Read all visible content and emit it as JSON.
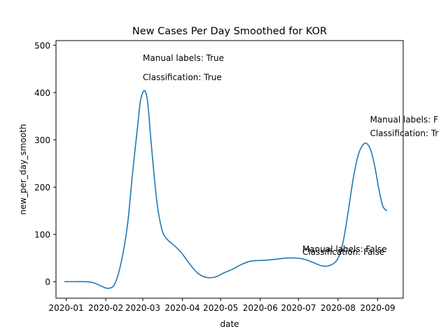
{
  "chart_data": {
    "type": "line",
    "title": "New Cases Per Day Smoothed for KOR",
    "xlabel": "date",
    "ylabel": "new_per_day_smooth",
    "xlim": [
      "2019-12-24",
      "2020-09-21"
    ],
    "ylim": [
      -35,
      510
    ],
    "x_ticks": [
      {
        "date": "2020-01-01",
        "label": "2020-01"
      },
      {
        "date": "2020-02-01",
        "label": "2020-02"
      },
      {
        "date": "2020-03-01",
        "label": "2020-03"
      },
      {
        "date": "2020-04-01",
        "label": "2020-04"
      },
      {
        "date": "2020-05-01",
        "label": "2020-05"
      },
      {
        "date": "2020-06-01",
        "label": "2020-06"
      },
      {
        "date": "2020-07-01",
        "label": "2020-07"
      },
      {
        "date": "2020-08-01",
        "label": "2020-08"
      },
      {
        "date": "2020-09-01",
        "label": "2020-09"
      }
    ],
    "y_ticks": [
      0,
      100,
      200,
      300,
      400,
      500
    ],
    "line_color": "#1f77b4",
    "series": [
      {
        "x": [
          "2019-12-31",
          "2020-01-08",
          "2020-01-15",
          "2020-01-22",
          "2020-01-29",
          "2020-02-03",
          "2020-02-08",
          "2020-02-13",
          "2020-02-18",
          "2020-02-22",
          "2020-02-26",
          "2020-02-28",
          "2020-03-01",
          "2020-03-03",
          "2020-03-05",
          "2020-03-08",
          "2020-03-12",
          "2020-03-16",
          "2020-03-20",
          "2020-03-25",
          "2020-03-31",
          "2020-04-06",
          "2020-04-13",
          "2020-04-20",
          "2020-04-27",
          "2020-05-03",
          "2020-05-10",
          "2020-05-17",
          "2020-05-24",
          "2020-06-01",
          "2020-06-08",
          "2020-06-15",
          "2020-06-22",
          "2020-06-29",
          "2020-07-06",
          "2020-07-13",
          "2020-07-20",
          "2020-07-27",
          "2020-08-01",
          "2020-08-05",
          "2020-08-09",
          "2020-08-13",
          "2020-08-17",
          "2020-08-21",
          "2020-08-24",
          "2020-08-27",
          "2020-08-30",
          "2020-09-02",
          "2020-09-05",
          "2020-09-08"
        ],
        "y": [
          0,
          0,
          0,
          -2,
          -10,
          -14,
          -5,
          40,
          120,
          230,
          330,
          380,
          400,
          402,
          375,
          280,
          170,
          110,
          90,
          78,
          62,
          40,
          18,
          9,
          10,
          18,
          26,
          36,
          43,
          45,
          46,
          48,
          50,
          50,
          47,
          40,
          33,
          36,
          50,
          85,
          150,
          220,
          270,
          291,
          291,
          275,
          240,
          195,
          160,
          150
        ]
      }
    ],
    "annotations": [
      {
        "text": "Manual labels: True",
        "x": "2020-03-01",
        "y": 467
      },
      {
        "text": "Classification: True",
        "x": "2020-03-01",
        "y": 426
      },
      {
        "text": "Manual labels: F",
        "x": "2020-08-26",
        "y": 337
      },
      {
        "text": "Classification: Tr",
        "x": "2020-08-26",
        "y": 308
      },
      {
        "text": "Manual labels: False",
        "x": "2020-07-04",
        "y": 63
      },
      {
        "text": "Classification: False",
        "x": "2020-07-04",
        "y": 57
      }
    ]
  }
}
